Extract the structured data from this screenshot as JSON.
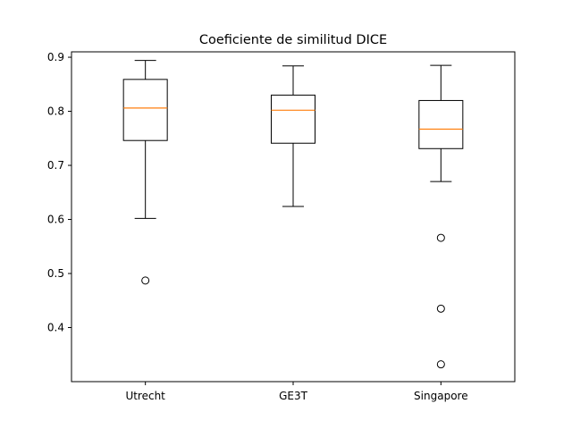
{
  "chart_data": {
    "type": "box",
    "title": "Coeficiente de similitud DICE",
    "xlabel": "",
    "ylabel": "",
    "ylim": [
      0.3,
      0.91
    ],
    "yticks": [
      0.4,
      0.5,
      0.6,
      0.7,
      0.8,
      0.9
    ],
    "ytick_labels": [
      "0.4",
      "0.5",
      "0.6",
      "0.7",
      "0.8",
      "0.9"
    ],
    "grid": false,
    "colors": {
      "box": "#000000",
      "median": "#ff7f0e",
      "flier": "#000000"
    },
    "categories": [
      "Utrecht",
      "GE3T",
      "Singapore"
    ],
    "boxes": [
      {
        "label": "Utrecht",
        "whisker_low": 0.602,
        "q1": 0.746,
        "median": 0.806,
        "q3": 0.859,
        "whisker_high": 0.894,
        "outliers": [
          0.487
        ]
      },
      {
        "label": "GE3T",
        "whisker_low": 0.624,
        "q1": 0.741,
        "median": 0.802,
        "q3": 0.83,
        "whisker_high": 0.884,
        "outliers": []
      },
      {
        "label": "Singapore",
        "whisker_low": 0.67,
        "q1": 0.731,
        "median": 0.767,
        "q3": 0.82,
        "whisker_high": 0.885,
        "outliers": [
          0.566,
          0.435,
          0.332
        ]
      }
    ]
  }
}
